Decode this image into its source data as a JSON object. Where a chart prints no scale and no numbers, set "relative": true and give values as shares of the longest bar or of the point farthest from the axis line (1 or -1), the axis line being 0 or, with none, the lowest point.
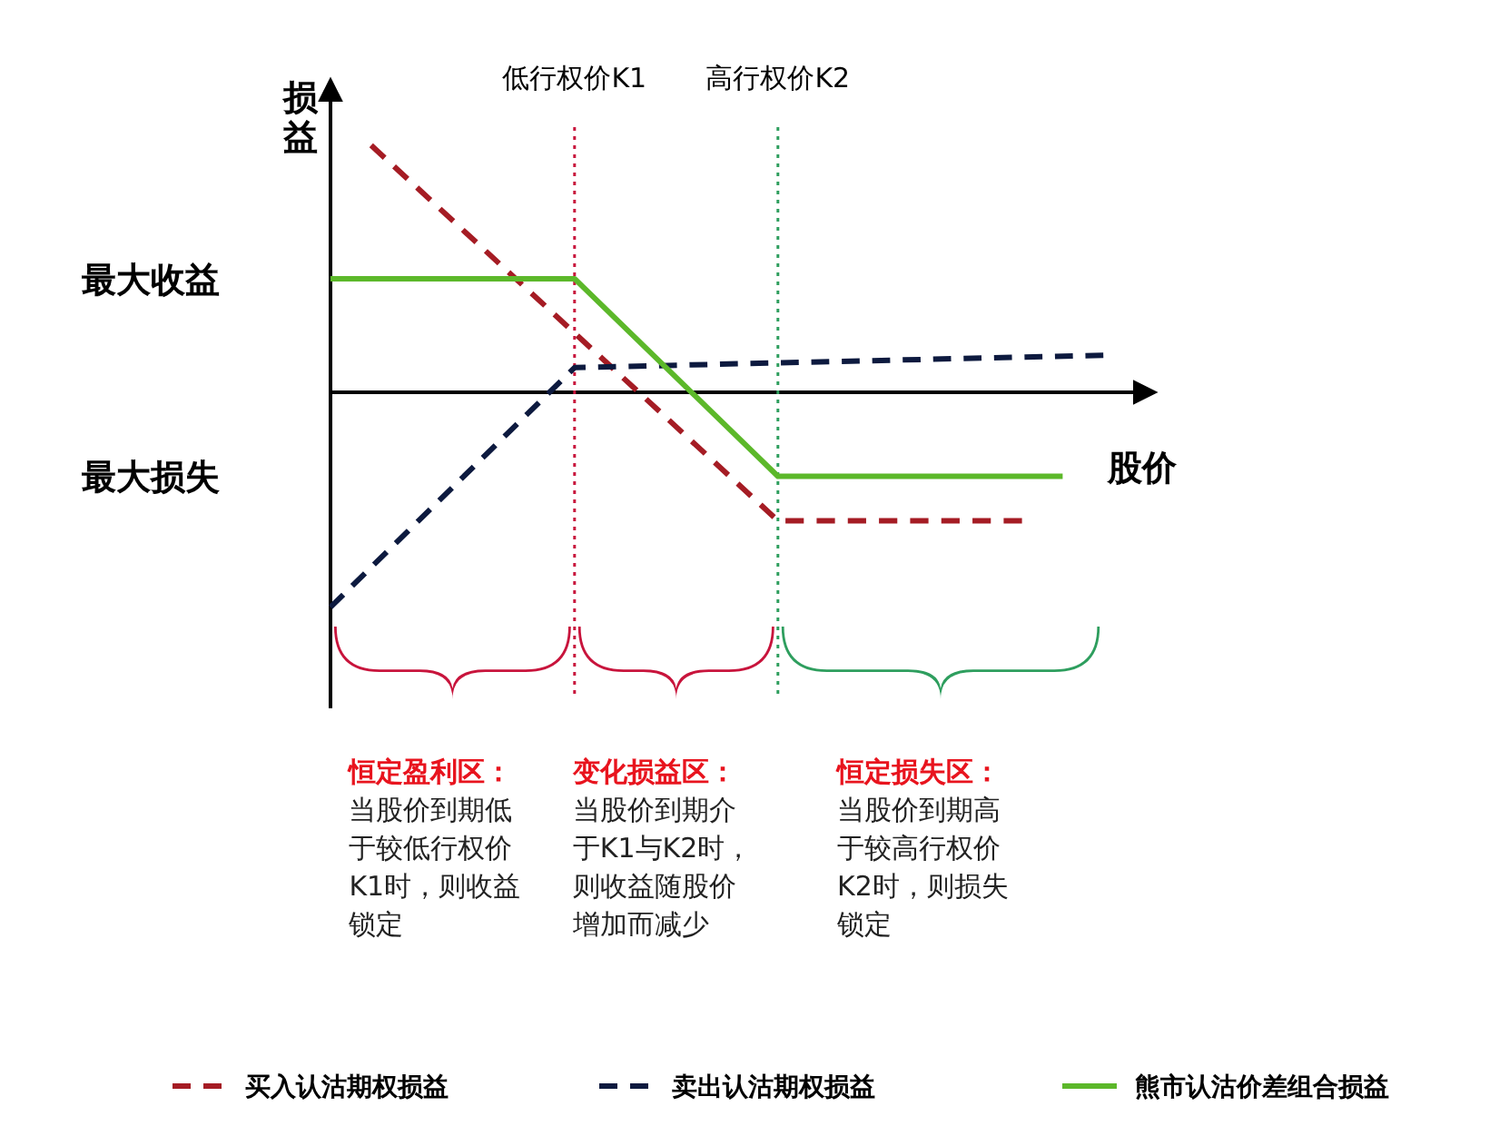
{
  "chart_data": {
    "type": "line",
    "relative": true,
    "xlabel": "股价",
    "ylabel": "损益",
    "tick_labels": "x",
    "legend": "bottom",
    "categories": [
      null,
      null,
      null,
      null,
      null,
      null,
      "低行权价K1",
      null,
      null,
      null,
      null,
      "高行权价K2",
      null,
      null,
      null,
      null,
      null,
      null,
      null,
      null
    ],
    "series": [
      {
        "name": "买入认沽期权损益",
        "color": "#a51c24",
        "line_style": "dashed",
        "values": [
          null,
          1,
          null,
          null,
          null,
          null,
          null,
          null,
          null,
          null,
          null,
          -0.52,
          null,
          null,
          null,
          null,
          null,
          -0.52,
          null,
          null
        ]
      },
      {
        "name": "卖出认沽期权损益",
        "color": "#0d1a3f",
        "line_style": "dashed",
        "values": [
          -0.87,
          null,
          null,
          null,
          null,
          null,
          0.1,
          null,
          null,
          null,
          null,
          null,
          null,
          null,
          null,
          null,
          null,
          null,
          null,
          0.15
        ]
      },
      {
        "name": "熊市认沽价差组合损益",
        "color": "#5cb82a",
        "line_style": "solid",
        "values": [
          0.46,
          null,
          null,
          null,
          null,
          null,
          0.46,
          null,
          null,
          null,
          null,
          -0.34,
          null,
          null,
          null,
          null,
          null,
          null,
          -0.34,
          null
        ]
      }
    ],
    "ref_lines": [
      {
        "axis": "x",
        "value": "低行权价K1",
        "color": "#c8143c",
        "line_style": "dotted"
      },
      {
        "axis": "x",
        "value": "高行权价K2",
        "color": "#2e9e5e",
        "line_style": "dotted"
      }
    ],
    "annotations": [
      "最大收益",
      "最大损失",
      "恒定盈利区：",
      "当股价到期低于较低行权价K1时，则收益锁定",
      "变化损益区：",
      "当股价到期介于K1与K2时，则收益随股价增加而减少",
      "恒定损失区：",
      "当股价到期高于较高行权价K2时，则损失锁定"
    ]
  }
}
